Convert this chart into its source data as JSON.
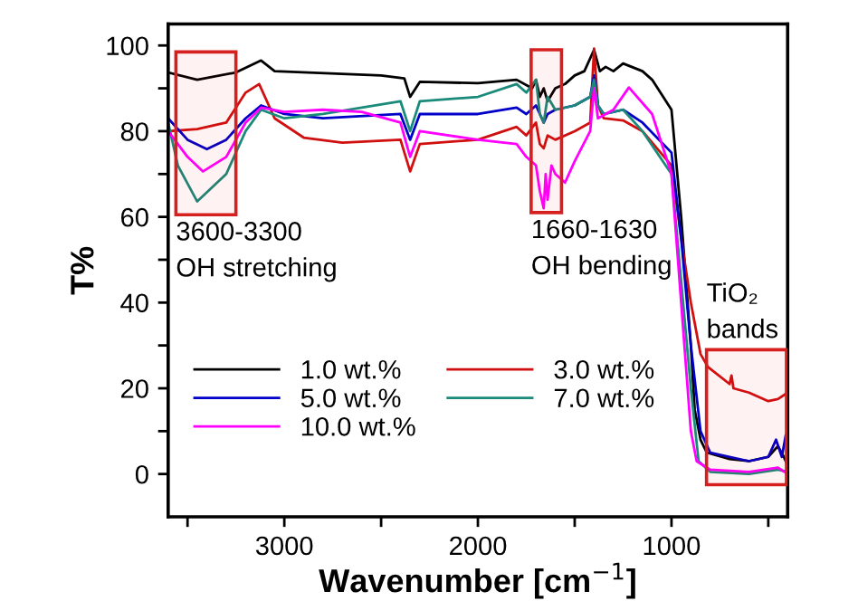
{
  "chart_data": {
    "type": "line",
    "xlabel": "Wavenumber [cm$^{−1}$]",
    "ylabel": "T%",
    "xlim": [
      3600,
      400
    ],
    "ylim": [
      -10,
      105
    ],
    "xticks": [
      {
        "value": 3500,
        "label": null
      },
      3000,
      {
        "value": 2500,
        "label": null
      },
      2000,
      {
        "value": 1500,
        "label": null
      },
      1000,
      {
        "value": 500,
        "label": null
      }
    ],
    "yticks": [
      0,
      {
        "value": 10,
        "label": null
      },
      20,
      {
        "value": 30,
        "label": null
      },
      40,
      {
        "value": 50,
        "label": null
      },
      60,
      {
        "value": 70,
        "label": null
      },
      80,
      {
        "value": 90,
        "label": null
      },
      100
    ],
    "grid": false,
    "legend": "bottom left",
    "marker": "none",
    "line_style": "solid",
    "series": [
      {
        "name": "1.0 wt.%",
        "color": "#000000",
        "x": [
          3600,
          3450,
          3250,
          3120,
          3050,
          2500,
          2380,
          2350,
          2300,
          2000,
          1800,
          1720,
          1700,
          1680,
          1660,
          1640,
          1600,
          1550,
          1500,
          1450,
          1400,
          1370,
          1340,
          1300,
          1250,
          1150,
          1100,
          1000,
          950,
          900,
          880,
          850,
          818,
          700,
          600,
          500,
          450,
          420,
          400
        ],
        "values": [
          93.7,
          92,
          93.7,
          96.5,
          94,
          93,
          92.3,
          88,
          91.5,
          91.2,
          92,
          90,
          92,
          88,
          90,
          87,
          90,
          91,
          93,
          94,
          99,
          94,
          95,
          94,
          95.8,
          94,
          92,
          85,
          60,
          30,
          15,
          8,
          5,
          3.5,
          3,
          4,
          6.5,
          4,
          2
        ]
      },
      {
        "name": "3.0 wt.%",
        "color": "#d01010",
        "x": [
          3600,
          3450,
          3300,
          3200,
          3130,
          3050,
          2900,
          2700,
          2400,
          2350,
          2300,
          2000,
          1800,
          1750,
          1700,
          1680,
          1660,
          1640,
          1600,
          1500,
          1420,
          1400,
          1380,
          1350,
          1250,
          1150,
          1000,
          950,
          900,
          850,
          812,
          700,
          690,
          680,
          600,
          500,
          450,
          400
        ],
        "values": [
          80,
          80.5,
          82,
          89,
          91,
          83,
          78.5,
          77.3,
          78,
          70.6,
          77,
          78,
          81,
          79,
          82,
          77,
          76,
          79,
          78,
          80,
          82,
          99.3,
          86,
          83,
          82.5,
          80,
          72,
          55,
          40,
          28,
          25,
          21,
          23,
          20,
          19,
          17,
          17.5,
          19
        ]
      },
      {
        "name": "5.0 wt.%",
        "color": "#0000c8",
        "x": [
          3600,
          3500,
          3400,
          3300,
          3200,
          3120,
          3000,
          2800,
          2400,
          2350,
          2300,
          2000,
          1800,
          1750,
          1700,
          1660,
          1640,
          1600,
          1500,
          1420,
          1400,
          1380,
          1350,
          1300,
          1250,
          1150,
          1000,
          950,
          900,
          850,
          800,
          600,
          500,
          460,
          430,
          410
        ],
        "values": [
          83,
          78,
          75.8,
          78,
          83,
          86,
          84,
          83,
          84,
          78,
          84,
          84,
          85.5,
          84,
          86,
          82,
          84,
          85,
          86,
          88,
          93,
          86,
          84,
          84.5,
          85,
          82,
          75,
          55,
          30,
          10,
          5,
          3,
          4,
          8,
          4,
          9
        ]
      },
      {
        "name": "7.0 wt.%",
        "color": "#1a8a7a",
        "x": [
          3600,
          3550,
          3450,
          3300,
          3200,
          3120,
          3000,
          2800,
          2400,
          2350,
          2300,
          2000,
          1800,
          1750,
          1700,
          1680,
          1660,
          1640,
          1600,
          1500,
          1420,
          1400,
          1380,
          1350,
          1250,
          1150,
          1000,
          950,
          900,
          860,
          800,
          600,
          450,
          400
        ],
        "values": [
          82,
          72,
          63.6,
          70,
          80,
          85,
          83,
          84,
          87,
          80,
          87,
          88,
          91,
          89,
          92,
          84,
          82,
          88,
          85,
          86,
          88,
          92,
          86,
          84,
          85,
          80,
          70,
          45,
          20,
          3,
          0.5,
          0,
          1,
          0.5
        ]
      },
      {
        "name": "10.0 wt.%",
        "color": "#ff00ff",
        "x": [
          3600,
          3500,
          3420,
          3300,
          3200,
          3120,
          3000,
          2800,
          2600,
          2400,
          2350,
          2300,
          2000,
          1800,
          1750,
          1700,
          1680,
          1660,
          1650,
          1640,
          1620,
          1600,
          1550,
          1500,
          1420,
          1400,
          1380,
          1300,
          1220,
          1100,
          1000,
          950,
          900,
          870,
          800,
          600,
          450,
          400
        ],
        "values": [
          80,
          74,
          70.6,
          74,
          82,
          85.5,
          84.5,
          85,
          84.5,
          82,
          74,
          80,
          78,
          77,
          74,
          72,
          66,
          62,
          70,
          64,
          72,
          70,
          68,
          73,
          80,
          90,
          83,
          85,
          90.2,
          84,
          70,
          40,
          10,
          3,
          1,
          0.5,
          1.5,
          0
        ]
      }
    ],
    "bands": [
      {
        "axis": "x",
        "from": 3560,
        "to": 3250,
        "label": "3600-3300\nOH stretching",
        "color": "#d62020"
      },
      {
        "axis": "x",
        "from": 1725,
        "to": 1568,
        "label": "1660-1630\nOH bending",
        "color": "#d62020"
      },
      {
        "axis": "x",
        "from": 819,
        "to": 406,
        "label": "TiO₂\nbands",
        "color": "#d62020"
      }
    ]
  }
}
